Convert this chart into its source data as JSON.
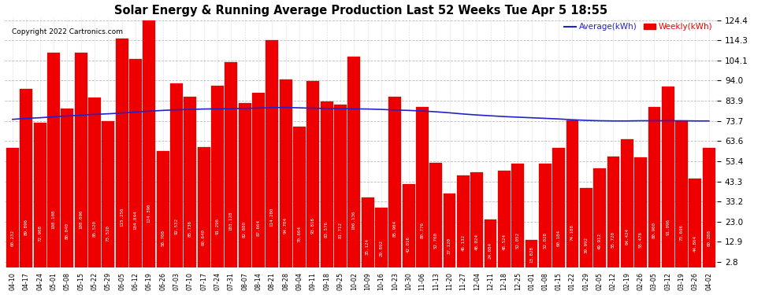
{
  "title": "Solar Energy & Running Average Production Last 52 Weeks Tue Apr 5 18:55",
  "copyright": "Copyright 2022 Cartronics.com",
  "legend_avg": "Average(kWh)",
  "legend_weekly": "Weekly(kWh)",
  "bar_color": "#ee0000",
  "avg_line_color": "#2222cc",
  "background_color": "#ffffff",
  "plot_bg_color": "#ffffff",
  "grid_color": "#bbbbbb",
  "yticks": [
    2.8,
    12.9,
    23.0,
    33.2,
    43.3,
    53.4,
    63.6,
    73.7,
    83.9,
    94.0,
    104.1,
    114.3,
    124.4
  ],
  "dates": [
    "04-10",
    "04-17",
    "04-24",
    "05-01",
    "05-08",
    "05-15",
    "05-22",
    "05-29",
    "06-05",
    "06-12",
    "06-19",
    "06-26",
    "07-03",
    "07-10",
    "07-17",
    "07-24",
    "07-31",
    "08-07",
    "08-14",
    "08-21",
    "08-28",
    "09-04",
    "09-11",
    "09-18",
    "09-25",
    "10-02",
    "10-09",
    "10-16",
    "10-23",
    "10-30",
    "11-06",
    "11-13",
    "11-20",
    "11-27",
    "12-04",
    "12-11",
    "12-18",
    "12-25",
    "01-01",
    "01-08",
    "01-15",
    "01-22",
    "01-29",
    "02-05",
    "02-12",
    "02-19",
    "02-26",
    "03-05",
    "03-12",
    "03-19",
    "03-26",
    "04-02"
  ],
  "weekly_values": [
    60.232,
    89.896,
    72.908,
    108.108,
    80.04,
    108.096,
    85.52,
    73.52,
    115.256,
    104.844,
    124.396,
    58.708,
    92.532,
    85.736,
    60.64,
    91.296,
    103.128,
    82.88,
    87.664,
    114.28,
    94.704,
    70.664,
    93.816,
    83.576,
    81.712,
    106.136,
    35.124,
    29.892,
    85.904,
    42.016,
    80.776,
    52.76,
    37.12,
    46.132,
    48.024,
    24.084,
    48.524,
    52.052,
    13.828,
    52.028,
    60.184,
    74.188,
    39.992,
    49.912,
    55.72,
    64.424,
    55.476,
    80.9,
    91.096,
    73.696,
    44.864,
    60.288
  ],
  "avg_values": [
    74.5,
    75.0,
    75.3,
    75.8,
    76.2,
    76.6,
    77.0,
    77.3,
    77.7,
    78.2,
    78.6,
    79.0,
    79.3,
    79.5,
    79.7,
    79.8,
    79.9,
    80.0,
    80.2,
    80.4,
    80.5,
    80.3,
    80.1,
    80.0,
    79.9,
    79.8,
    79.7,
    79.5,
    79.2,
    79.0,
    78.7,
    78.3,
    77.8,
    77.2,
    76.7,
    76.3,
    75.9,
    75.6,
    75.3,
    75.0,
    74.7,
    74.3,
    74.0,
    73.8,
    73.7,
    73.7,
    73.8,
    73.8,
    73.8,
    73.8,
    73.7,
    73.7
  ]
}
